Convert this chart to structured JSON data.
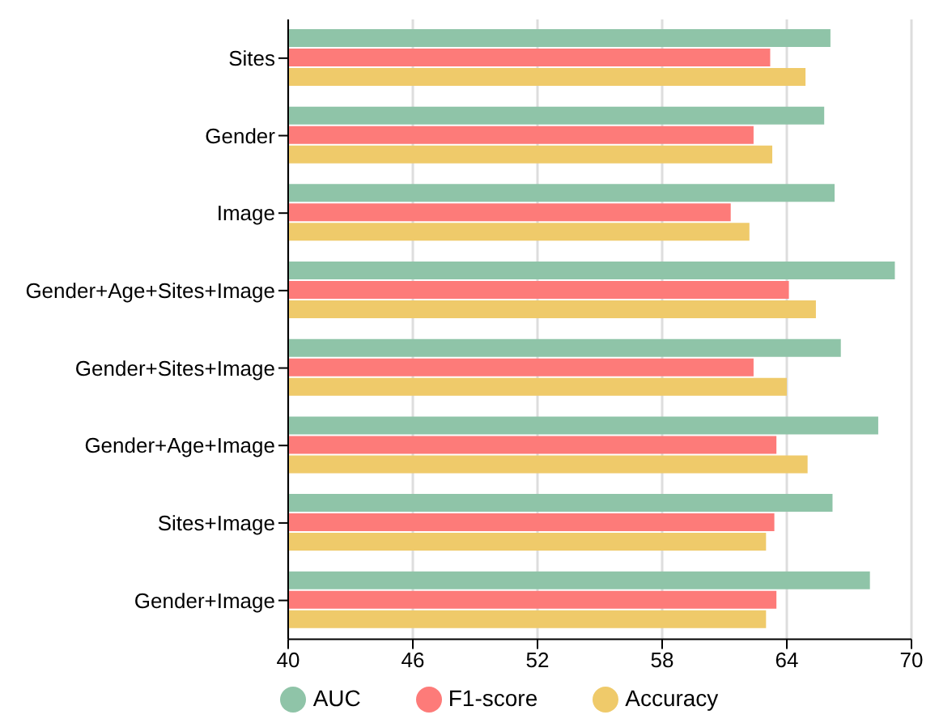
{
  "chart_data": {
    "type": "bar",
    "orientation": "horizontal",
    "categories": [
      "Sites",
      "Gender",
      "Image",
      "Gender+Age+Sites+Image",
      "Gender+Sites+Image",
      "Gender+Age+Image",
      "Sites+Image",
      "Gender+Image"
    ],
    "series": [
      {
        "name": "AUC",
        "color": "#8fc4a8",
        "values": [
          66.1,
          65.8,
          66.3,
          69.2,
          66.6,
          68.4,
          66.2,
          68.0
        ]
      },
      {
        "name": "F1-score",
        "color": "#fd7b79",
        "values": [
          63.2,
          62.4,
          61.3,
          64.1,
          62.4,
          63.5,
          63.4,
          63.5
        ]
      },
      {
        "name": "Accuracy",
        "color": "#efca6a",
        "values": [
          64.9,
          63.3,
          62.2,
          65.4,
          64.0,
          65.0,
          63.0,
          63.0
        ]
      }
    ],
    "xlim": [
      40,
      70
    ],
    "xticks": [
      40,
      46,
      52,
      58,
      64,
      70
    ],
    "grid": "x",
    "legend": "bottom"
  }
}
